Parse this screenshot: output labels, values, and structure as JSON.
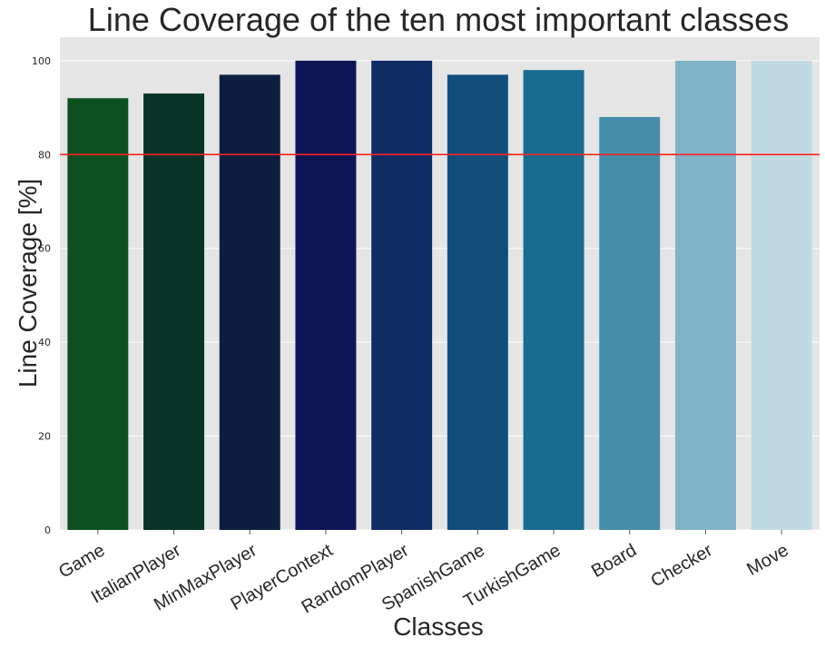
{
  "chart_data": {
    "type": "bar",
    "title": "Line Coverage of the ten most important classes",
    "xlabel": "Classes",
    "ylabel": "Line Coverage [%]",
    "categories": [
      "Game",
      "ItalianPlayer",
      "MinMaxPlayer",
      "PlayerContext",
      "RandomPlayer",
      "SpanishGame",
      "TurkishGame",
      "Board",
      "Checker",
      "Move"
    ],
    "values": [
      92,
      93,
      97,
      100,
      100,
      97,
      98,
      88,
      100,
      100
    ],
    "bar_colors": [
      "#0c5020",
      "#093428",
      "#0c1f40",
      "#0d1556",
      "#0f2c65",
      "#114e7c",
      "#176c90",
      "#438fab",
      "#7fb3c8",
      "#bfdae2"
    ],
    "ylim": [
      0,
      105
    ],
    "yticks": [
      0,
      20,
      40,
      60,
      80,
      100
    ],
    "reference_line": {
      "y": 80,
      "color": "#ff2020"
    },
    "background_color": "#e5e5e5",
    "grid": true
  }
}
